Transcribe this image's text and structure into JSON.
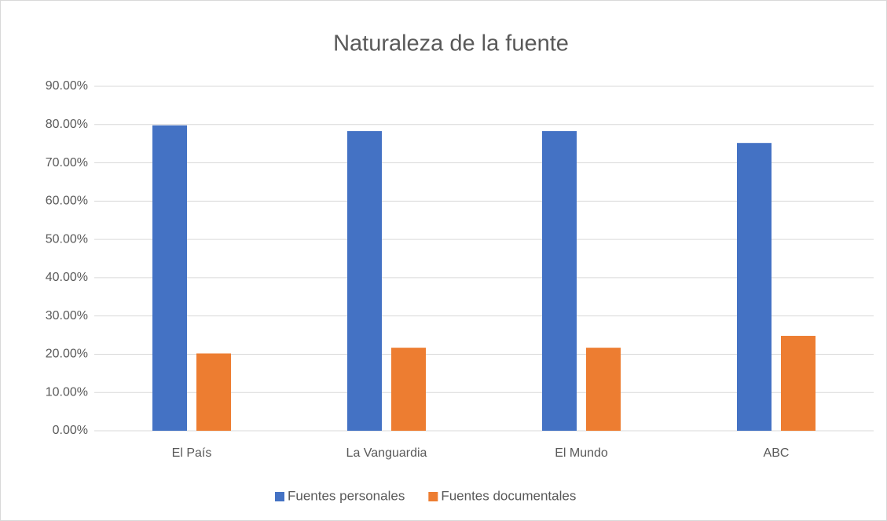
{
  "chart_data": {
    "type": "bar",
    "title": "Naturaleza de la fuente",
    "categories": [
      "El País",
      "La Vanguardia",
      "El Mundo",
      "ABC"
    ],
    "series": [
      {
        "name": "Fuentes personales",
        "color": "#4472c4",
        "values": [
          79.8,
          78.3,
          78.3,
          75.2
        ]
      },
      {
        "name": "Fuentes documentales",
        "color": "#ed7d31",
        "values": [
          20.2,
          21.7,
          21.7,
          24.8
        ]
      }
    ],
    "ylim": [
      0,
      90
    ],
    "yticks": [
      {
        "value": 0,
        "label": "0.00%"
      },
      {
        "value": 10,
        "label": "10.00%"
      },
      {
        "value": 20,
        "label": "20.00%"
      },
      {
        "value": 30,
        "label": "30.00%"
      },
      {
        "value": 40,
        "label": "40.00%"
      },
      {
        "value": 50,
        "label": "50.00%"
      },
      {
        "value": 60,
        "label": "60.00%"
      },
      {
        "value": 70,
        "label": "70.00%"
      },
      {
        "value": 80,
        "label": "80.00%"
      },
      {
        "value": 90,
        "label": "90.00%"
      }
    ],
    "grid": true,
    "legend": "bottom"
  }
}
